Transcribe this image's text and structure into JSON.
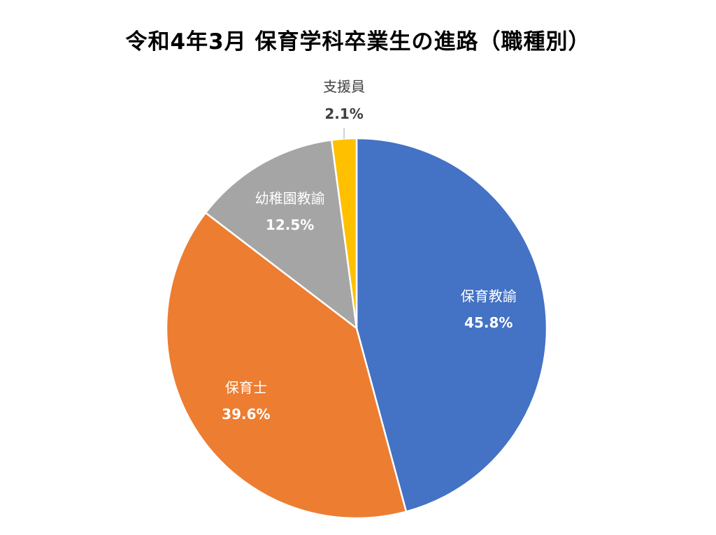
{
  "chart_data": {
    "type": "pie",
    "title": "令和4年3月 保育学科卒業生の進路（職種別）",
    "slices": [
      {
        "label": "保育教諭",
        "value": 45.8,
        "value_label": "45.8%",
        "color": "#4472C4",
        "text_color": "#FFFFFF"
      },
      {
        "label": "保育士",
        "value": 39.6,
        "value_label": "39.6%",
        "color": "#ED7D31",
        "text_color": "#FFFFFF"
      },
      {
        "label": "幼稚園教諭",
        "value": 12.5,
        "value_label": "12.5%",
        "color": "#A5A5A5",
        "text_color": "#FFFFFF"
      },
      {
        "label": "支援員",
        "value": 2.1,
        "value_label": "2.1%",
        "color": "#FFC000",
        "text_color": "#404040"
      }
    ],
    "start_angle": "12 o'clock",
    "direction": "clockwise",
    "legend": "none",
    "data_labels": "name and percentage"
  }
}
